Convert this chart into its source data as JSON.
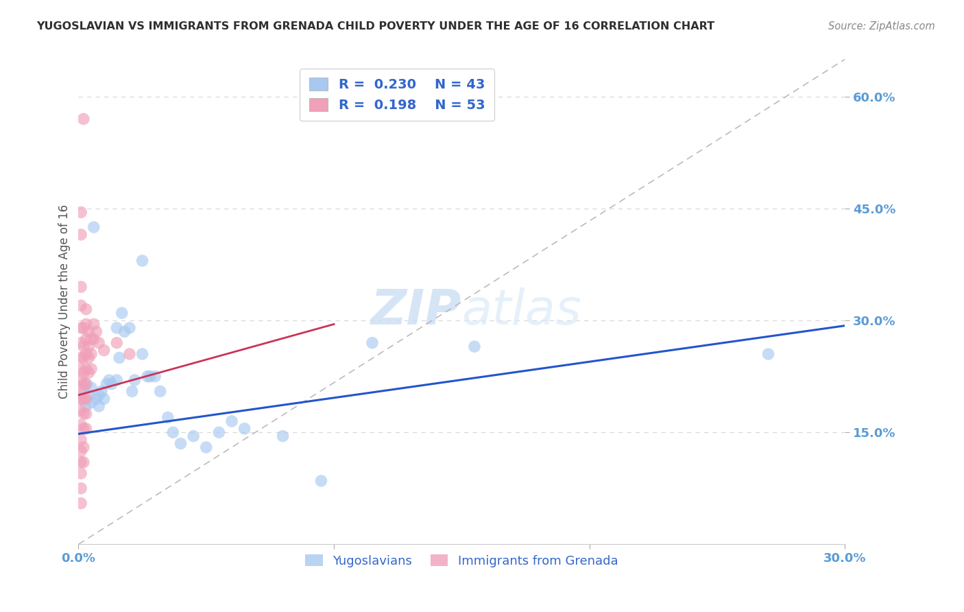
{
  "title": "YUGOSLAVIAN VS IMMIGRANTS FROM GRENADA CHILD POVERTY UNDER THE AGE OF 16 CORRELATION CHART",
  "source": "Source: ZipAtlas.com",
  "ylabel": "Child Poverty Under the Age of 16",
  "xmin": 0.0,
  "xmax": 0.3,
  "ymin": 0.0,
  "ymax": 0.65,
  "yticks": [
    0.15,
    0.3,
    0.45,
    0.6
  ],
  "ytick_labels": [
    "15.0%",
    "30.0%",
    "45.0%",
    "60.0%"
  ],
  "xticks": [
    0.0,
    0.1,
    0.2,
    0.3
  ],
  "xtick_labels": [
    "0.0%",
    "",
    "",
    "30.0%"
  ],
  "legend_bottom_labels": [
    "Yugoslavians",
    "Immigrants from Grenada"
  ],
  "blue_color": "#a8c8f0",
  "pink_color": "#f0a0b8",
  "blue_line_color": "#2255cc",
  "pink_line_color": "#cc3355",
  "title_color": "#303030",
  "axis_color": "#5b9bd5",
  "grid_color": "#d8d8d8",
  "watermark_zip": "ZIP",
  "watermark_atlas": "atlas",
  "background_color": "#ffffff",
  "blue_line_x": [
    0.0,
    0.3
  ],
  "blue_line_y": [
    0.148,
    0.293
  ],
  "pink_line_x": [
    0.0,
    0.1
  ],
  "pink_line_y": [
    0.2,
    0.295
  ],
  "diag_line_x": [
    0.0,
    0.3
  ],
  "diag_line_y": [
    0.0,
    0.65
  ],
  "blue_points": [
    [
      0.001,
      0.195
    ],
    [
      0.002,
      0.205
    ],
    [
      0.003,
      0.185
    ],
    [
      0.003,
      0.215
    ],
    [
      0.004,
      0.2
    ],
    [
      0.005,
      0.19
    ],
    [
      0.005,
      0.21
    ],
    [
      0.006,
      0.425
    ],
    [
      0.007,
      0.195
    ],
    [
      0.008,
      0.185
    ],
    [
      0.008,
      0.2
    ],
    [
      0.009,
      0.205
    ],
    [
      0.01,
      0.195
    ],
    [
      0.011,
      0.215
    ],
    [
      0.012,
      0.22
    ],
    [
      0.013,
      0.215
    ],
    [
      0.015,
      0.29
    ],
    [
      0.015,
      0.22
    ],
    [
      0.016,
      0.25
    ],
    [
      0.017,
      0.31
    ],
    [
      0.018,
      0.285
    ],
    [
      0.02,
      0.29
    ],
    [
      0.021,
      0.205
    ],
    [
      0.022,
      0.22
    ],
    [
      0.025,
      0.255
    ],
    [
      0.027,
      0.225
    ],
    [
      0.028,
      0.225
    ],
    [
      0.03,
      0.225
    ],
    [
      0.032,
      0.205
    ],
    [
      0.035,
      0.17
    ],
    [
      0.037,
      0.15
    ],
    [
      0.04,
      0.135
    ],
    [
      0.045,
      0.145
    ],
    [
      0.05,
      0.13
    ],
    [
      0.055,
      0.15
    ],
    [
      0.06,
      0.165
    ],
    [
      0.065,
      0.155
    ],
    [
      0.08,
      0.145
    ],
    [
      0.095,
      0.085
    ],
    [
      0.115,
      0.27
    ],
    [
      0.155,
      0.265
    ],
    [
      0.27,
      0.255
    ],
    [
      0.025,
      0.38
    ]
  ],
  "pink_points": [
    [
      0.001,
      0.445
    ],
    [
      0.001,
      0.415
    ],
    [
      0.001,
      0.345
    ],
    [
      0.001,
      0.32
    ],
    [
      0.001,
      0.29
    ],
    [
      0.001,
      0.27
    ],
    [
      0.001,
      0.25
    ],
    [
      0.001,
      0.235
    ],
    [
      0.001,
      0.22
    ],
    [
      0.001,
      0.21
    ],
    [
      0.001,
      0.195
    ],
    [
      0.001,
      0.18
    ],
    [
      0.001,
      0.16
    ],
    [
      0.001,
      0.14
    ],
    [
      0.001,
      0.125
    ],
    [
      0.001,
      0.11
    ],
    [
      0.001,
      0.095
    ],
    [
      0.001,
      0.075
    ],
    [
      0.001,
      0.055
    ],
    [
      0.002,
      0.57
    ],
    [
      0.002,
      0.29
    ],
    [
      0.002,
      0.265
    ],
    [
      0.002,
      0.25
    ],
    [
      0.002,
      0.23
    ],
    [
      0.002,
      0.215
    ],
    [
      0.002,
      0.195
    ],
    [
      0.002,
      0.175
    ],
    [
      0.002,
      0.155
    ],
    [
      0.002,
      0.13
    ],
    [
      0.002,
      0.11
    ],
    [
      0.003,
      0.315
    ],
    [
      0.003,
      0.295
    ],
    [
      0.003,
      0.275
    ],
    [
      0.003,
      0.255
    ],
    [
      0.003,
      0.235
    ],
    [
      0.003,
      0.215
    ],
    [
      0.003,
      0.195
    ],
    [
      0.003,
      0.175
    ],
    [
      0.003,
      0.155
    ],
    [
      0.004,
      0.285
    ],
    [
      0.004,
      0.265
    ],
    [
      0.004,
      0.25
    ],
    [
      0.004,
      0.23
    ],
    [
      0.005,
      0.275
    ],
    [
      0.005,
      0.255
    ],
    [
      0.005,
      0.235
    ],
    [
      0.006,
      0.295
    ],
    [
      0.006,
      0.275
    ],
    [
      0.007,
      0.285
    ],
    [
      0.008,
      0.27
    ],
    [
      0.01,
      0.26
    ],
    [
      0.015,
      0.27
    ],
    [
      0.02,
      0.255
    ]
  ]
}
